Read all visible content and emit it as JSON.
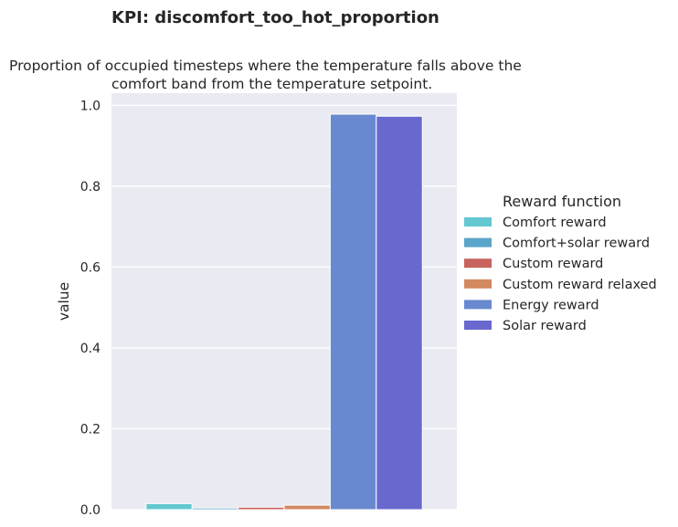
{
  "chart_data": {
    "type": "bar",
    "title": "KPI: discomfort_too_hot_proportion",
    "subtitle": [
      "Proportion of occupied timesteps where the temperature falls above the",
      "comfort band from the temperature setpoint."
    ],
    "xlabel": "",
    "ylabel": "value",
    "ylim": [
      0,
      1.03
    ],
    "yticks": [
      0.0,
      0.2,
      0.4,
      0.6,
      0.8,
      1.0
    ],
    "ytick_labels": [
      "0.0",
      "0.2",
      "0.4",
      "0.6",
      "0.8",
      "1.0"
    ],
    "grid": true,
    "background": "#eaeaf2",
    "legend": {
      "title": "Reward function",
      "placement": "right"
    },
    "series": [
      {
        "name": "Comfort reward",
        "value": 0.015,
        "color": "#63c8cf"
      },
      {
        "name": "Comfort+solar reward",
        "value": 0.004,
        "color": "#5aa5c9"
      },
      {
        "name": "Custom reward",
        "value": 0.006,
        "color": "#c8635f"
      },
      {
        "name": "Custom reward relaxed",
        "value": 0.011,
        "color": "#d2895f"
      },
      {
        "name": "Energy reward",
        "value": 0.978,
        "color": "#6889cf"
      },
      {
        "name": "Solar reward",
        "value": 0.973,
        "color": "#6868cf"
      }
    ]
  }
}
